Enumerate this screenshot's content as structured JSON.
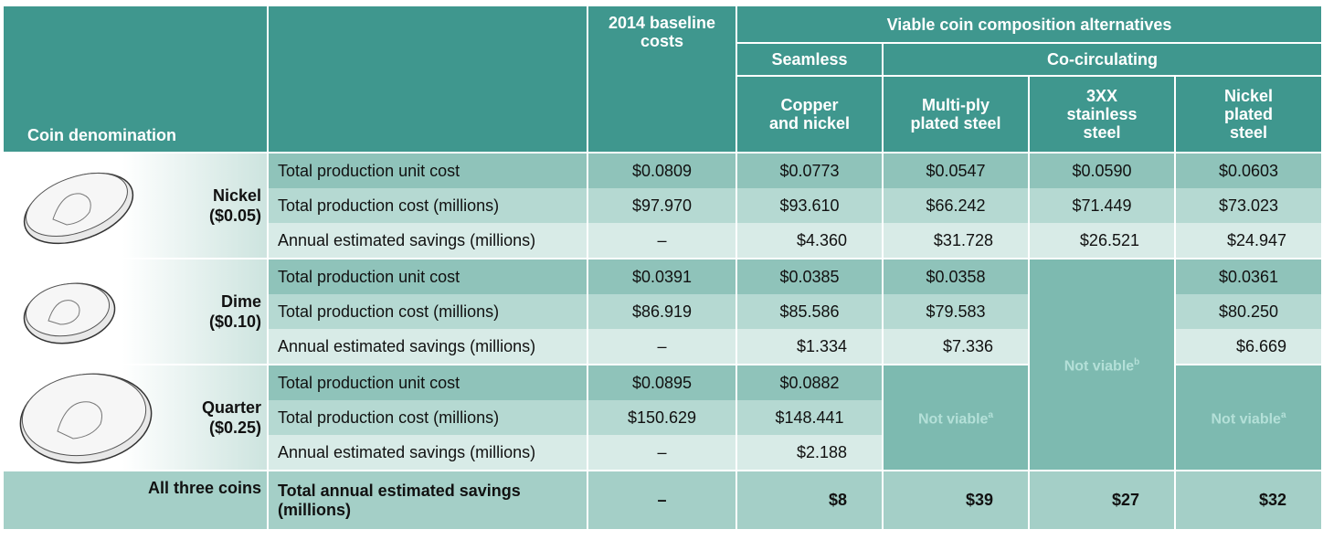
{
  "header": {
    "coin_denomination": "Coin denomination",
    "baseline": "2014 baseline costs",
    "alternatives": "Viable coin composition alternatives",
    "seamless": "Seamless",
    "co_circulating": "Co-circulating",
    "columns": [
      "Copper and nickel",
      "Multi-ply plated steel",
      "3XX stainless steel",
      "Nickel plated steel"
    ]
  },
  "coins": [
    {
      "name": "Nickel",
      "value": "($0.05)",
      "rows": [
        {
          "label": "Total production unit cost",
          "cells": [
            "$0.0809",
            "$0.0773",
            "$0.0547",
            "$0.0590",
            "$0.0603"
          ]
        },
        {
          "label": "Total production cost (millions)",
          "cells": [
            "$97.970",
            "$93.610",
            "$66.242",
            "$71.449",
            "$73.023"
          ]
        },
        {
          "label": "Annual estimated savings (millions)",
          "cells": [
            "–",
            "$4.360",
            "$31.728",
            "$26.521",
            "$24.947"
          ]
        }
      ]
    },
    {
      "name": "Dime",
      "value": "($0.10)",
      "rows": [
        {
          "label": "Total production unit cost",
          "cells": [
            "$0.0391",
            "$0.0385",
            "$0.0358",
            "$0.0361"
          ]
        },
        {
          "label": "Total production cost (millions)",
          "cells": [
            "$86.919",
            "$85.586",
            "$79.583",
            "$80.250"
          ]
        },
        {
          "label": "Annual estimated savings (millions)",
          "cells": [
            "–",
            "$1.334",
            "$7.336",
            "$6.669"
          ]
        }
      ]
    },
    {
      "name": "Quarter",
      "value": "($0.25)",
      "rows": [
        {
          "label": "Total production unit cost",
          "cells": [
            "$0.0895",
            "$0.0882"
          ]
        },
        {
          "label": "Total production cost (millions)",
          "cells": [
            "$150.629",
            "$148.441"
          ]
        },
        {
          "label": "Annual estimated savings (millions)",
          "cells": [
            "–",
            "$2.188"
          ]
        }
      ]
    }
  ],
  "not_viable": [
    {
      "label": "Not viable",
      "note": "b"
    },
    {
      "label": "Not viable",
      "note": "a"
    },
    {
      "label": "Not viable",
      "note": "a"
    }
  ],
  "totals": {
    "label": "All three coins",
    "description": "Total annual estimated savings (millions)",
    "cells": [
      "–",
      "$8",
      "$39",
      "$27",
      "$32"
    ]
  }
}
